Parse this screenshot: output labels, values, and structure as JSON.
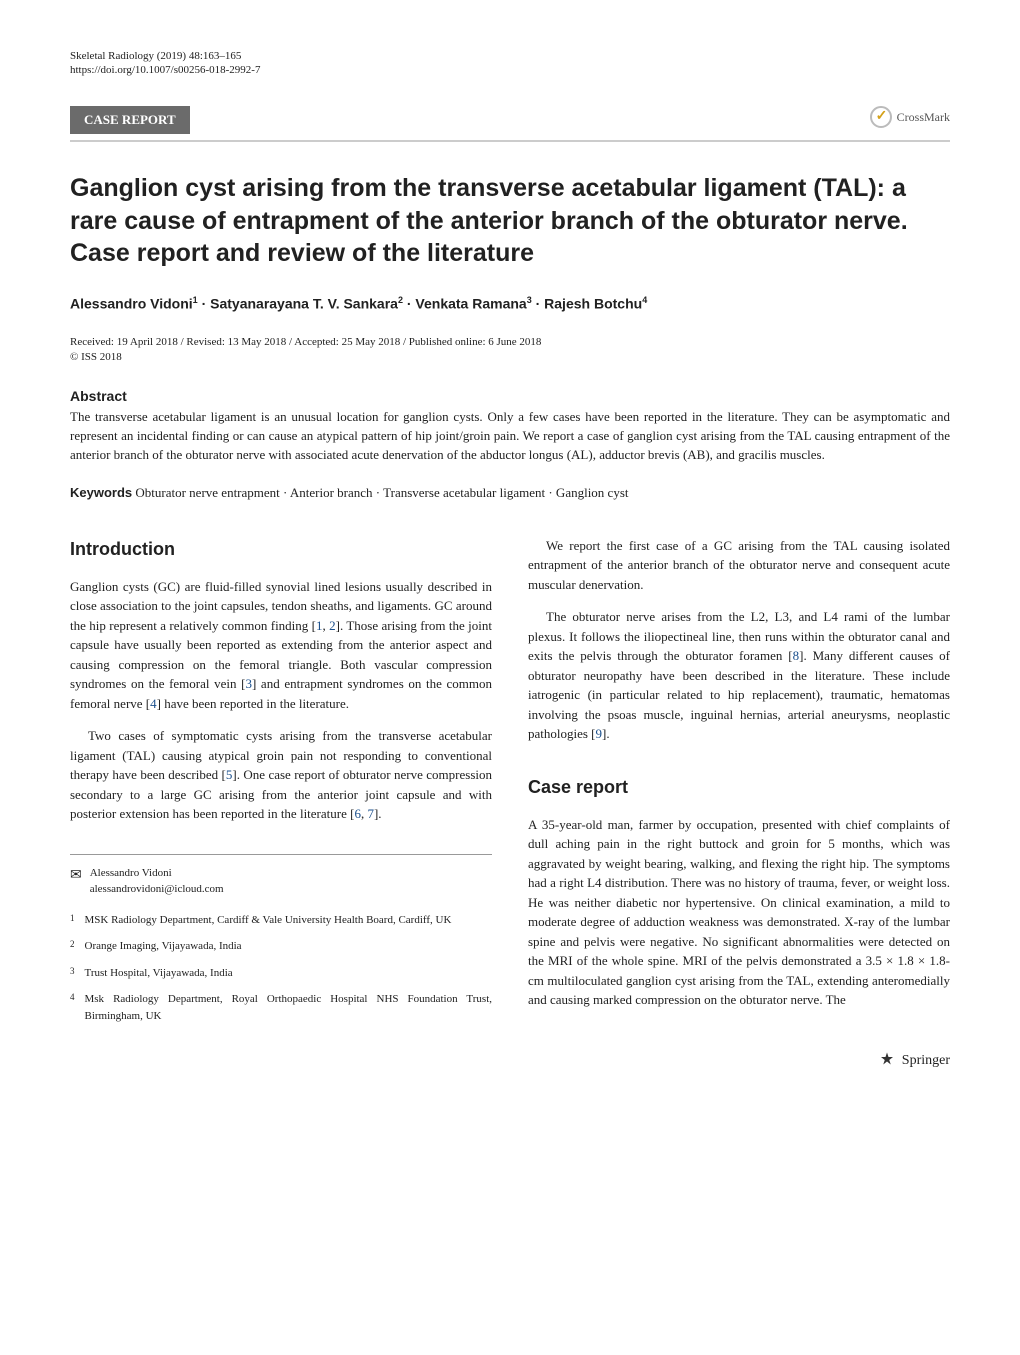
{
  "header": {
    "journal": "Skeletal Radiology (2019) 48:163–165",
    "doi": "https://doi.org/10.1007/s00256-018-2992-7"
  },
  "section_label": "CASE REPORT",
  "crossmark_label": "CrossMark",
  "title": "Ganglion cyst arising from the transverse acetabular ligament (TAL): a rare cause of entrapment of the anterior branch of the obturator nerve. Case report and review of the literature",
  "authors_html": "Alessandro Vidoni<sup>1</sup> · Satyanarayana T. V. Sankara<sup>2</sup> · Venkata Ramana<sup>3</sup> · Rajesh Botchu<sup>4</sup>",
  "dates": "Received: 19 April 2018 / Revised: 13 May 2018 / Accepted: 25 May 2018 / Published online: 6 June 2018",
  "copyright": "© ISS 2018",
  "abstract": {
    "heading": "Abstract",
    "text": "The transverse acetabular ligament is an unusual location for ganglion cysts. Only a few cases have been reported in the literature. They can be asymptomatic and represent an incidental finding or can cause an atypical pattern of hip joint/groin pain. We report a case of ganglion cyst arising from the TAL causing entrapment of the anterior branch of the obturator nerve with associated acute denervation of the abductor longus (AL), adductor brevis (AB), and gracilis muscles."
  },
  "keywords": {
    "heading": "Keywords",
    "text": "Obturator nerve entrapment · Anterior branch · Transverse acetabular ligament · Ganglion cyst"
  },
  "introduction": {
    "heading": "Introduction",
    "p1a": "Ganglion cysts (GC) are fluid-filled synovial lined lesions usually described in close association to the joint capsules, tendon sheaths, and ligaments. GC around the hip represent a relatively common finding [",
    "p1b": "]. Those arising from the joint capsule have usually been reported as extending from the anterior aspect and causing compression on the femoral triangle. Both vascular compression syndromes on the femoral vein [",
    "p1c": "] and entrapment syndromes on the common femoral nerve [",
    "p1d": "] have been reported in the literature.",
    "p2a": "Two cases of symptomatic cysts arising from the transverse acetabular ligament (TAL) causing atypical groin pain not responding to conventional therapy have been described [",
    "p2b": "]. One case report of obturator nerve compression secondary to a large GC arising from the anterior joint capsule and with posterior extension has been reported in the literature [",
    "p2c": "].",
    "ref1": "1",
    "ref2": "2",
    "ref3": "3",
    "ref4": "4",
    "ref5": "5",
    "ref6": "6",
    "ref7": "7"
  },
  "right_col": {
    "p1": "We report the first case of a GC arising from the TAL causing isolated entrapment of the anterior branch of the obturator nerve and consequent acute muscular denervation.",
    "p2a": "The obturator nerve arises from the L2, L3, and L4 rami of the lumbar plexus. It follows the iliopectineal line, then runs within the obturator canal and exits the pelvis through the obturator foramen [",
    "p2b": "]. Many different causes of obturator neuropathy have been described in the literature. These include iatrogenic (in particular related to hip replacement), traumatic, hematomas involving the psoas muscle, inguinal hernias, arterial aneurysms, neoplastic pathologies [",
    "p2c": "].",
    "ref8": "8",
    "ref9": "9"
  },
  "case_report": {
    "heading": "Case report",
    "p1": "A 35-year-old man, farmer by occupation, presented with chief complaints of dull aching pain in the right buttock and groin for 5 months, which was aggravated by weight bearing, walking, and flexing the right hip. The symptoms had a right L4 distribution. There was no history of trauma, fever, or weight loss. He was neither diabetic nor hypertensive. On clinical examination, a mild to moderate degree of adduction weakness was demonstrated. X-ray of the lumbar spine and pelvis were negative. No significant abnormalities were detected on the MRI of the whole spine. MRI of the pelvis demonstrated a 3.5 × 1.8 × 1.8-cm multiloculated ganglion cyst arising from the TAL, extending anteromedially and causing marked compression on the obturator nerve. The"
  },
  "footnotes": {
    "corresp_name": "Alessandro Vidoni",
    "corresp_email": "alessandrovidoni@icloud.com",
    "affil1": "MSK Radiology Department, Cardiff & Vale University Health Board, Cardiff, UK",
    "affil2": "Orange Imaging, Vijayawada, India",
    "affil3": "Trust Hospital, Vijayawada, India",
    "affil4": "Msk Radiology Department, Royal Orthopaedic Hospital NHS Foundation Trust, Birmingham, UK"
  },
  "footer": {
    "publisher": "Springer"
  }
}
